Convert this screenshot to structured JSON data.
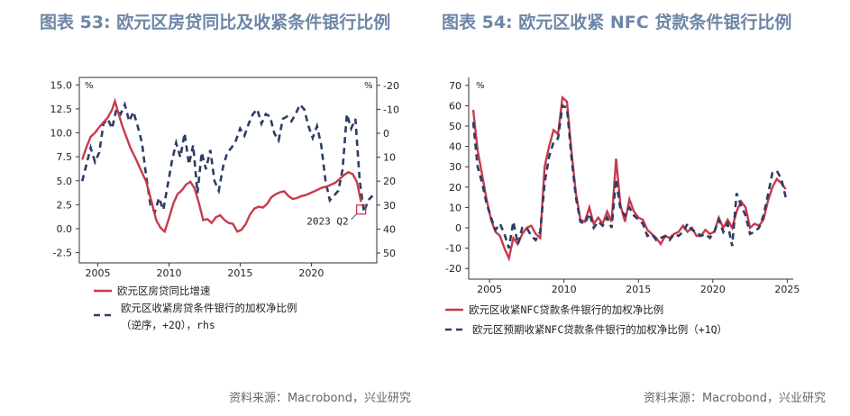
{
  "colors": {
    "red": "#c83a4d",
    "navy": "#2c3e63",
    "title": "#6d86a7"
  },
  "panels": [
    {
      "title": "图表 53: 欧元区房贷同比及收紧条件银行比例",
      "source": "资料来源：Macrobond，兴业研究",
      "chart_data": {
        "type": "line",
        "x_ticks": [
          2005,
          2010,
          2015,
          2020
        ],
        "x_range": [
          2003.7,
          2024.6
        ],
        "y_left_ticks": [
          "15.0",
          "12.5",
          "10.0",
          "7.5",
          "5.0",
          "2.5",
          "0.0",
          "-2.5"
        ],
        "y_left_range": [
          -3.3,
          15.6
        ],
        "y_left_unit": "%",
        "y_right_ticks": [
          "-20",
          "-10",
          "0",
          "10",
          "20",
          "30",
          "40",
          "50"
        ],
        "y_right_unit": "%",
        "y_right_inverted": true,
        "annotation": "2023 Q2",
        "legend": [
          "欧元区房贷同比增速",
          "欧元区收紧房贷条件银行的加权净比例",
          "（逆序，+2Q），rhs"
        ],
        "series": [
          {
            "name": "欧元区房贷同比增速",
            "axis": "left",
            "style": "solid",
            "x": [
              2003.9,
              2004.2,
              2004.5,
              2004.8,
              2005.1,
              2005.4,
              2005.7,
              2006.0,
              2006.2,
              2006.4,
              2006.7,
              2007.0,
              2007.3,
              2007.6,
              2008.0,
              2008.4,
              2008.8,
              2009.1,
              2009.4,
              2009.7,
              2010.0,
              2010.3,
              2010.6,
              2010.9,
              2011.2,
              2011.5,
              2011.8,
              2012.1,
              2012.4,
              2012.7,
              2013.0,
              2013.3,
              2013.6,
              2013.9,
              2014.2,
              2014.5,
              2014.8,
              2015.1,
              2015.4,
              2015.7,
              2016.0,
              2016.3,
              2016.6,
              2016.9,
              2017.2,
              2017.5,
              2017.8,
              2018.1,
              2018.4,
              2018.7,
              2019.0,
              2019.3,
              2019.6,
              2019.9,
              2020.2,
              2020.5,
              2020.8,
              2021.1,
              2021.4,
              2021.7,
              2022.0,
              2022.3,
              2022.6,
              2022.9,
              2023.2,
              2023.5
            ],
            "y": [
              7.2,
              8.5,
              9.6,
              10.0,
              10.6,
              11.1,
              11.6,
              12.4,
              13.3,
              12.3,
              10.8,
              9.6,
              8.4,
              7.5,
              6.2,
              4.9,
              2.7,
              0.9,
              0.1,
              -0.3,
              1.1,
              2.6,
              3.6,
              4.0,
              4.6,
              4.9,
              4.2,
              2.7,
              0.9,
              1.0,
              0.6,
              1.2,
              1.4,
              0.9,
              0.6,
              0.5,
              -0.3,
              -0.1,
              0.5,
              1.5,
              2.1,
              2.3,
              2.2,
              2.6,
              3.3,
              3.6,
              3.8,
              3.9,
              3.4,
              3.1,
              3.2,
              3.4,
              3.5,
              3.7,
              3.9,
              4.1,
              4.3,
              4.4,
              4.6,
              4.8,
              5.2,
              5.6,
              5.9,
              5.7,
              4.9,
              2.8
            ]
          },
          {
            "name": "欧元区收紧房贷条件银行的加权净比例（逆序，+2Q），rhs",
            "axis": "right",
            "style": "dashed",
            "x": [
              2003.9,
              2004.2,
              2004.5,
              2004.8,
              2005.1,
              2005.4,
              2005.7,
              2006.0,
              2006.3,
              2006.6,
              2006.9,
              2007.2,
              2007.5,
              2007.8,
              2008.1,
              2008.4,
              2008.7,
              2009.0,
              2009.3,
              2009.6,
              2009.9,
              2010.2,
              2010.5,
              2010.8,
              2011.1,
              2011.4,
              2011.7,
              2012.0,
              2012.3,
              2012.6,
              2012.9,
              2013.2,
              2013.5,
              2013.8,
              2014.1,
              2014.4,
              2014.7,
              2015.0,
              2015.3,
              2015.6,
              2015.9,
              2016.2,
              2016.5,
              2016.8,
              2017.1,
              2017.4,
              2017.7,
              2018.0,
              2018.3,
              2018.6,
              2018.9,
              2019.2,
              2019.5,
              2019.8,
              2020.1,
              2020.4,
              2020.7,
              2021.0,
              2021.3,
              2021.6,
              2021.9,
              2022.2,
              2022.5,
              2022.8,
              2023.1,
              2023.4,
              2023.7,
              2024.0,
              2024.3
            ],
            "y": [
              20,
              13,
              6,
              12,
              8,
              -4,
              -6,
              -2,
              -10,
              -8,
              -12,
              -5,
              -9,
              -3,
              4,
              18,
              30,
              33,
              27,
              32,
              22,
              12,
              4,
              10,
              0,
              13,
              5,
              25,
              8,
              15,
              7,
              20,
              24,
              14,
              8,
              6,
              3,
              -2,
              1,
              -4,
              -8,
              -10,
              -4,
              -8,
              -7,
              0,
              3,
              -6,
              -7,
              -5,
              -8,
              -12,
              -10,
              -3,
              2,
              -3,
              5,
              20,
              28,
              26,
              24,
              15,
              -8,
              -2,
              -6,
              20,
              33,
              28,
              26
            ]
          }
        ]
      }
    },
    {
      "title": "图表 54: 欧元区收紧 NFC 贷款条件银行比例",
      "source": "资料来源：Macrobond，兴业研究",
      "chart_data": {
        "type": "line",
        "x_ticks": [
          2005,
          2010,
          2015,
          2020,
          2025
        ],
        "x_range": [
          2003.6,
          2025.4
        ],
        "y_ticks": [
          "70",
          "60",
          "50",
          "40",
          "30",
          "20",
          "10",
          "0",
          "-10",
          "-20"
        ],
        "y_range": [
          -22,
          73
        ],
        "y_unit": "%",
        "legend": [
          "欧元区收紧NFC贷款条件银行的加权净比例",
          "欧元区预期收紧NFC贷款条件银行的加权净比例（+1Q）"
        ],
        "series": [
          {
            "name": "欧元区收紧NFC贷款条件银行的加权净比例",
            "style": "solid",
            "x": [
              2003.9,
              2004.2,
              2004.5,
              2004.8,
              2005.1,
              2005.4,
              2005.7,
              2006.0,
              2006.3,
              2006.6,
              2006.9,
              2007.2,
              2007.5,
              2007.8,
              2008.1,
              2008.4,
              2008.7,
              2009.0,
              2009.3,
              2009.6,
              2009.9,
              2010.2,
              2010.5,
              2010.8,
              2011.1,
              2011.4,
              2011.7,
              2012.0,
              2012.3,
              2012.6,
              2012.9,
              2013.2,
              2013.5,
              2013.8,
              2014.1,
              2014.4,
              2014.7,
              2015.0,
              2015.3,
              2015.6,
              2015.9,
              2016.2,
              2016.5,
              2016.8,
              2017.1,
              2017.4,
              2017.7,
              2018.0,
              2018.3,
              2018.6,
              2018.9,
              2019.2,
              2019.5,
              2019.8,
              2020.1,
              2020.4,
              2020.7,
              2021.0,
              2021.3,
              2021.6,
              2021.9,
              2022.2,
              2022.5,
              2022.8,
              2023.1,
              2023.4,
              2023.7,
              2024.0,
              2024.3,
              2024.6,
              2024.9
            ],
            "y": [
              58,
              38,
              26,
              14,
              4,
              -2,
              -4,
              -10,
              -15,
              -5,
              -8,
              -3,
              0,
              1,
              -3,
              -5,
              30,
              40,
              48,
              46,
              64,
              62,
              38,
              17,
              4,
              3,
              10,
              2,
              5,
              2,
              8,
              3,
              34,
              11,
              3,
              14,
              8,
              5,
              4,
              -1,
              -3,
              -5,
              -8,
              -4,
              -5,
              -3,
              -2,
              1,
              -2,
              0,
              -4,
              -4,
              -1,
              -3,
              -2,
              5,
              0,
              4,
              0,
              8,
              13,
              10,
              0,
              2,
              1,
              4,
              13,
              20,
              24,
              22,
              19
            ]
          },
          {
            "name": "欧元区预期收紧NFC贷款条件银行的加权净比例（+1Q）",
            "style": "dashed",
            "x": [
              2003.9,
              2004.2,
              2004.5,
              2004.8,
              2005.1,
              2005.4,
              2005.7,
              2006.0,
              2006.3,
              2006.6,
              2006.9,
              2007.2,
              2007.5,
              2007.8,
              2008.1,
              2008.4,
              2008.7,
              2009.0,
              2009.3,
              2009.6,
              2009.9,
              2010.2,
              2010.5,
              2010.8,
              2011.1,
              2011.4,
              2011.7,
              2012.0,
              2012.3,
              2012.6,
              2012.9,
              2013.2,
              2013.5,
              2013.8,
              2014.1,
              2014.4,
              2014.7,
              2015.0,
              2015.3,
              2015.6,
              2015.9,
              2016.2,
              2016.5,
              2016.8,
              2017.1,
              2017.4,
              2017.7,
              2018.0,
              2018.3,
              2018.6,
              2018.9,
              2019.2,
              2019.5,
              2019.8,
              2020.1,
              2020.4,
              2020.7,
              2021.0,
              2021.3,
              2021.6,
              2021.9,
              2022.2,
              2022.5,
              2022.8,
              2023.1,
              2023.4,
              2023.7,
              2024.0,
              2024.3,
              2024.6,
              2024.9
            ],
            "y": [
              52,
              30,
              22,
              12,
              5,
              -1,
              2,
              -3,
              -10,
              3,
              -8,
              0,
              0,
              -4,
              -6,
              -2,
              22,
              35,
              42,
              44,
              60,
              59,
              35,
              15,
              3,
              2,
              7,
              0,
              3,
              1,
              5,
              0,
              24,
              9,
              6,
              10,
              6,
              4,
              2,
              -4,
              -3,
              -6,
              -5,
              -4,
              -6,
              -3,
              -4,
              -2,
              2,
              -1,
              -2,
              -4,
              -3,
              -5,
              -2,
              4,
              -2,
              2,
              -9,
              17,
              11,
              6,
              -3,
              -2,
              0,
              6,
              16,
              27,
              28,
              24,
              15
            ]
          }
        ]
      }
    }
  ]
}
